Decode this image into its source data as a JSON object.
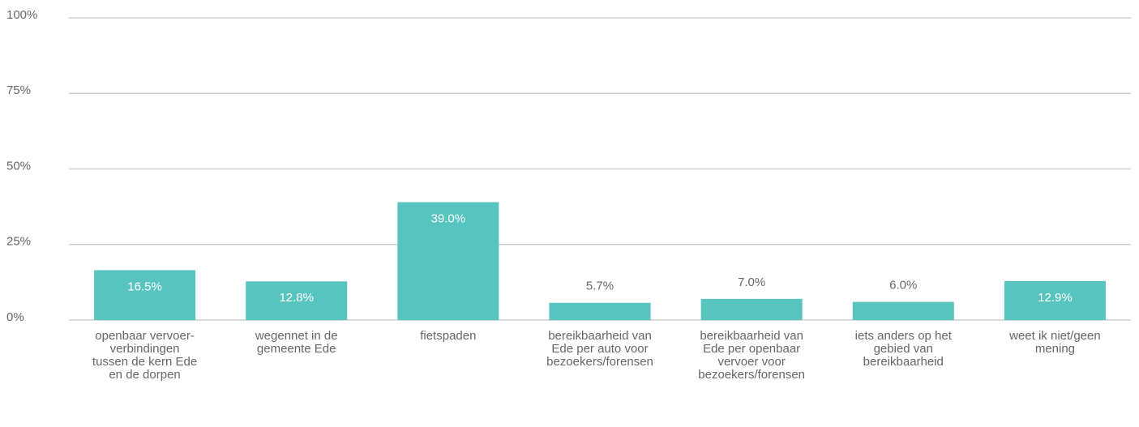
{
  "chart_data": {
    "type": "bar",
    "categories": [
      "openbaar vervoer-verbindingen tussen de kern Ede en de dorpen",
      "wegennet in de gemeente Ede",
      "fietspaden",
      "bereikbaarheid van Ede per auto voor bezoekers/forensen",
      "bereikbaarheid van Ede per openbaar vervoer voor bezoekers/forensen",
      "iets anders op het gebied van bereikbaarheid",
      "weet ik niet/geen mening"
    ],
    "values": [
      16.5,
      12.8,
      39.0,
      5.7,
      7.0,
      6.0,
      12.9
    ],
    "value_labels": [
      "16.5%",
      "12.8%",
      "39.0%",
      "5.7%",
      "7.0%",
      "6.0%",
      "12.9%"
    ],
    "color": "#57c4c0",
    "ylim": [
      0,
      100
    ],
    "yticks": [
      {
        "value": 0,
        "label": "0%"
      },
      {
        "value": 25,
        "label": "25%"
      },
      {
        "value": 50,
        "label": "50%"
      },
      {
        "value": 75,
        "label": "75%"
      },
      {
        "value": 100,
        "label": "100%"
      }
    ],
    "grid": true
  }
}
